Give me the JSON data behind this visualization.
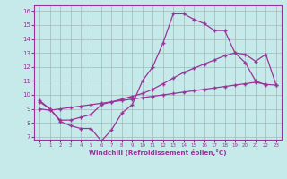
{
  "xlabel": "Windchill (Refroidissement éolien,°C)",
  "xlim": [
    -0.5,
    23.5
  ],
  "ylim": [
    6.8,
    16.4
  ],
  "yticks": [
    7,
    8,
    9,
    10,
    11,
    12,
    13,
    14,
    15,
    16
  ],
  "xticks": [
    0,
    1,
    2,
    3,
    4,
    5,
    6,
    7,
    8,
    9,
    10,
    11,
    12,
    13,
    14,
    15,
    16,
    17,
    18,
    19,
    20,
    21,
    22,
    23
  ],
  "bg_color": "#c6eaea",
  "grid_color": "#a0b8b8",
  "line_color": "#993399",
  "curve1_x": [
    0,
    1,
    2,
    3,
    4,
    5,
    6,
    7,
    8,
    9,
    10,
    11,
    12,
    13,
    14,
    15,
    16,
    17,
    18,
    19,
    20,
    21,
    22
  ],
  "curve1_y": [
    9.6,
    9.0,
    8.1,
    7.8,
    7.6,
    7.6,
    6.7,
    7.5,
    8.7,
    9.3,
    11.0,
    12.0,
    13.7,
    15.8,
    15.8,
    15.4,
    15.1,
    14.6,
    14.6,
    13.0,
    12.3,
    11.0,
    10.7
  ],
  "curve2_x": [
    0,
    1,
    2,
    3,
    4,
    5,
    6,
    7,
    8,
    9,
    10,
    11,
    12,
    13,
    14,
    15,
    16,
    17,
    18,
    19,
    20,
    21,
    22,
    23
  ],
  "curve2_y": [
    9.5,
    9.0,
    8.2,
    8.2,
    8.4,
    8.6,
    9.3,
    9.5,
    9.7,
    9.9,
    10.1,
    10.4,
    10.8,
    11.2,
    11.6,
    11.9,
    12.2,
    12.5,
    12.8,
    13.0,
    12.9,
    12.4,
    12.9,
    10.7
  ],
  "curve3_x": [
    0,
    1,
    2,
    3,
    4,
    5,
    6,
    7,
    8,
    9,
    10,
    11,
    12,
    13,
    14,
    15,
    16,
    17,
    18,
    19,
    20,
    21,
    22,
    23
  ],
  "curve3_y": [
    9.0,
    8.9,
    9.0,
    9.1,
    9.2,
    9.3,
    9.4,
    9.5,
    9.6,
    9.7,
    9.8,
    9.9,
    10.0,
    10.1,
    10.2,
    10.3,
    10.4,
    10.5,
    10.6,
    10.7,
    10.8,
    10.9,
    10.75,
    10.7
  ]
}
